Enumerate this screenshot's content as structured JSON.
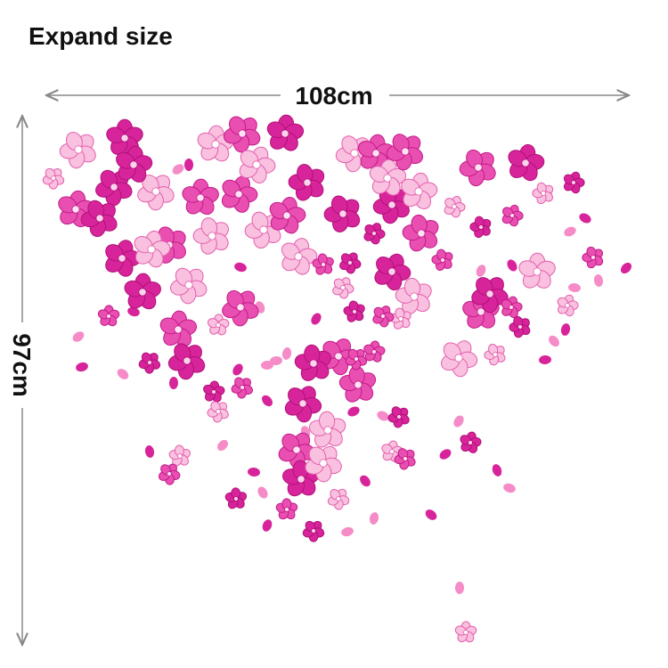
{
  "title": "Expand size",
  "width_label": "108cm",
  "height_label": "97cm"
}
